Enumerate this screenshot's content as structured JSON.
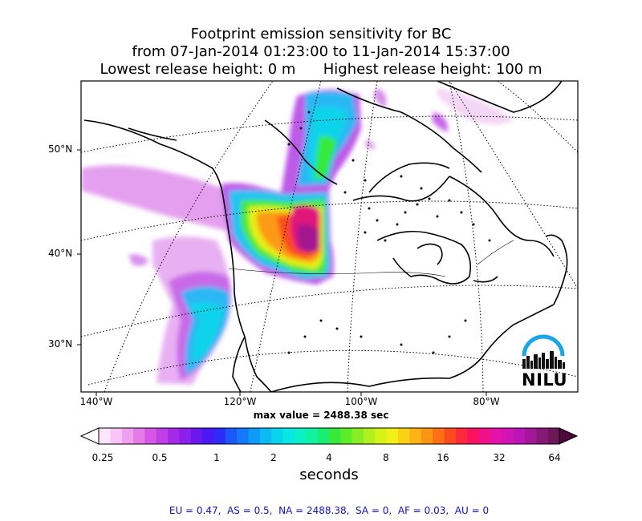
{
  "title": {
    "line1": "Footprint emission sensitivity for BC",
    "line2": "from 07-Jan-2014 01:23:00 to 11-Jan-2014 15:37:00",
    "line3": "Lowest release height: 0 m      Highest release height: 100 m"
  },
  "axes": {
    "lat_labels": [
      "50°N",
      "40°N",
      "30°N"
    ],
    "lon_labels": [
      "140°W",
      "120°W",
      "100°W",
      "80°W"
    ]
  },
  "max_value_text": "max value = 2488.38 sec",
  "colorbar": {
    "ticks": [
      "0.25",
      "0.5",
      "1",
      "2",
      "4",
      "8",
      "16",
      "32",
      "64"
    ],
    "label": "seconds",
    "colors": [
      "#fde6fb",
      "#f8c6f6",
      "#f0a0f0",
      "#e57be9",
      "#d457e6",
      "#bf3fe6",
      "#a52ae8",
      "#8a20ea",
      "#6a18ee",
      "#4a18f2",
      "#2c2cf6",
      "#1a58f8",
      "#1478fa",
      "#109af8",
      "#0cbaf4",
      "#08d4ee",
      "#08e8e2",
      "#0cf0c6",
      "#10f2a0",
      "#1aee72",
      "#36ea3a",
      "#5eec2a",
      "#88ee24",
      "#b0f01e",
      "#d4f218",
      "#f2f014",
      "#fad214",
      "#fcb414",
      "#fc9414",
      "#fc7016",
      "#fc4c1e",
      "#fc2a3c",
      "#f81260",
      "#f0108a",
      "#e412a8",
      "#d214b4",
      "#bc16b6",
      "#a21898",
      "#861878",
      "#6e1858"
    ],
    "min_arrow_color": "#ffffff",
    "max_arrow_color": "#4a0a3a"
  },
  "region_summary": "EU = 0.47,  AS = 0.5,  NA = 2488.38,  SA = 0,  AF = 0.03,  AU = 0",
  "logo_text": "NILU",
  "colors": {
    "logo_arc": "#1aa6e6",
    "logo_city": "#111111",
    "region_summary": "#1010c8"
  }
}
